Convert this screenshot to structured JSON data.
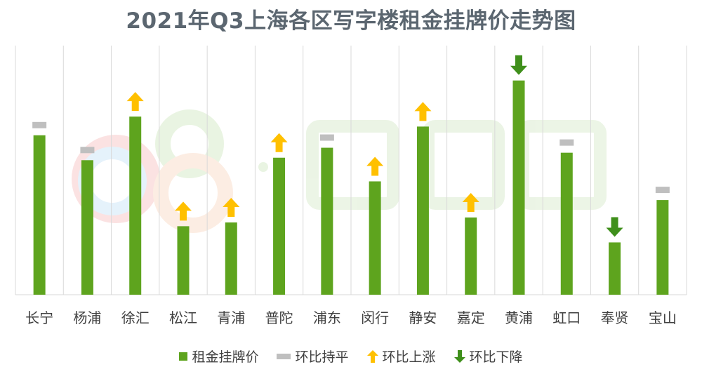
{
  "chart_data": {
    "type": "bar",
    "title": "2021年Q3上海各区写字楼租金挂牌价走势图",
    "categories": [
      "长宁",
      "杨浦",
      "徐汇",
      "松江",
      "青浦",
      "普陀",
      "浦东",
      "闵行",
      "静安",
      "嘉定",
      "黄浦",
      "虹口",
      "奉贤",
      "宝山"
    ],
    "series": [
      {
        "name": "租金挂牌价",
        "values": [
          6.4,
          5.4,
          7.15,
          2.75,
          2.9,
          5.5,
          5.9,
          4.55,
          6.75,
          3.1,
          8.6,
          5.7,
          2.1,
          3.8
        ],
        "trend": [
          "flat",
          "flat",
          "up",
          "up",
          "up",
          "up",
          "flat",
          "up",
          "up",
          "up",
          "down",
          "flat",
          "down",
          "flat"
        ]
      }
    ],
    "ylim": [
      0,
      10
    ],
    "grid": "vertical",
    "legend_position": "bottom",
    "legend": [
      {
        "key": "bar",
        "label": "租金挂牌价"
      },
      {
        "key": "flat",
        "label": "环比持平"
      },
      {
        "key": "up",
        "label": "环比上涨"
      },
      {
        "key": "down",
        "label": "环比下降"
      }
    ]
  },
  "colors": {
    "bar": "#5ea41e",
    "flat": "#bfbfbf",
    "up": "#ffc000",
    "down": "#3f8f1b",
    "grid": "#d9d9d9",
    "title": "#5b6670"
  }
}
